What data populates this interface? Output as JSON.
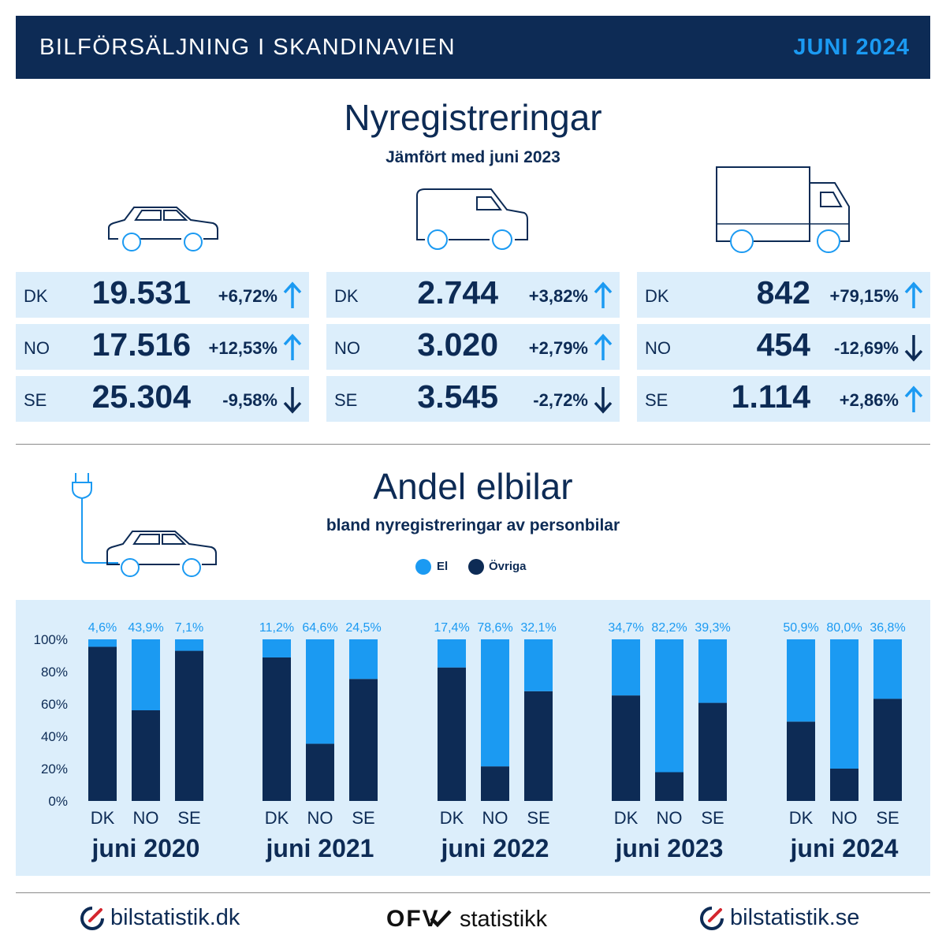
{
  "header": {
    "title": "BILFÖRSÄLJNING I SKANDINAVIEN",
    "date": "JUNI 2024"
  },
  "registrations": {
    "title": "Nyregistreringar",
    "subtitle": "Jämfört med juni 2023",
    "groups": [
      {
        "icon": "car-icon",
        "rows": [
          {
            "country": "DK",
            "value": "19.531",
            "change": "+6,72%",
            "direction": "up"
          },
          {
            "country": "NO",
            "value": "17.516",
            "change": "+12,53%",
            "direction": "up"
          },
          {
            "country": "SE",
            "value": "25.304",
            "change": "-9,58%",
            "direction": "down"
          }
        ]
      },
      {
        "icon": "van-icon",
        "rows": [
          {
            "country": "DK",
            "value": "2.744",
            "change": "+3,82%",
            "direction": "up"
          },
          {
            "country": "NO",
            "value": "3.020",
            "change": "+2,79%",
            "direction": "up"
          },
          {
            "country": "SE",
            "value": "3.545",
            "change": "-2,72%",
            "direction": "down"
          }
        ]
      },
      {
        "icon": "truck-icon",
        "rows": [
          {
            "country": "DK",
            "value": "842",
            "change": "+79,15%",
            "direction": "up"
          },
          {
            "country": "NO",
            "value": "454",
            "change": "-12,69%",
            "direction": "down"
          },
          {
            "country": "SE",
            "value": "1.114",
            "change": "+2,86%",
            "direction": "up"
          }
        ]
      }
    ]
  },
  "ev_share": {
    "title": "Andel elbilar",
    "subtitle": "bland nyregistreringar av personbilar",
    "icon": "ev-plug-car-icon"
  },
  "colors": {
    "el": "#1b9af2",
    "ovriga": "#0d2b55",
    "panel": "#dceefb",
    "up": "#1b9af2",
    "down": "#0d2b55"
  },
  "chart_data": {
    "type": "bar",
    "stacked": true,
    "legend": [
      "El",
      "Övriga"
    ],
    "legend_position": "top-center",
    "yticks": [
      "0%",
      "20%",
      "40%",
      "60%",
      "80%",
      "100%"
    ],
    "ylim": [
      0,
      100
    ],
    "groups": [
      {
        "label": "juni 2020",
        "categories": [
          "DK",
          "NO",
          "SE"
        ],
        "el": [
          4.6,
          43.9,
          7.1
        ],
        "el_labels": [
          "4,6%",
          "43,9%",
          "7,1%"
        ]
      },
      {
        "label": "juni 2021",
        "categories": [
          "DK",
          "NO",
          "SE"
        ],
        "el": [
          11.2,
          64.6,
          24.5
        ],
        "el_labels": [
          "11,2%",
          "64,6%",
          "24,5%"
        ]
      },
      {
        "label": "juni 2022",
        "categories": [
          "DK",
          "NO",
          "SE"
        ],
        "el": [
          17.4,
          78.6,
          32.1
        ],
        "el_labels": [
          "17,4%",
          "78,6%",
          "32,1%"
        ]
      },
      {
        "label": "juni 2023",
        "categories": [
          "DK",
          "NO",
          "SE"
        ],
        "el": [
          34.7,
          82.2,
          39.3
        ],
        "el_labels": [
          "34,7%",
          "82,2%",
          "39,3%"
        ]
      },
      {
        "label": "juni 2024",
        "categories": [
          "DK",
          "NO",
          "SE"
        ],
        "el": [
          50.9,
          80.0,
          36.8
        ],
        "el_labels": [
          "50,9%",
          "80,0%",
          "36,8%"
        ]
      }
    ]
  },
  "footer": {
    "left": "bilstatistik.dk",
    "center_logo": "OFV",
    "center": "statistikk",
    "right": "bilstatistik.se"
  }
}
